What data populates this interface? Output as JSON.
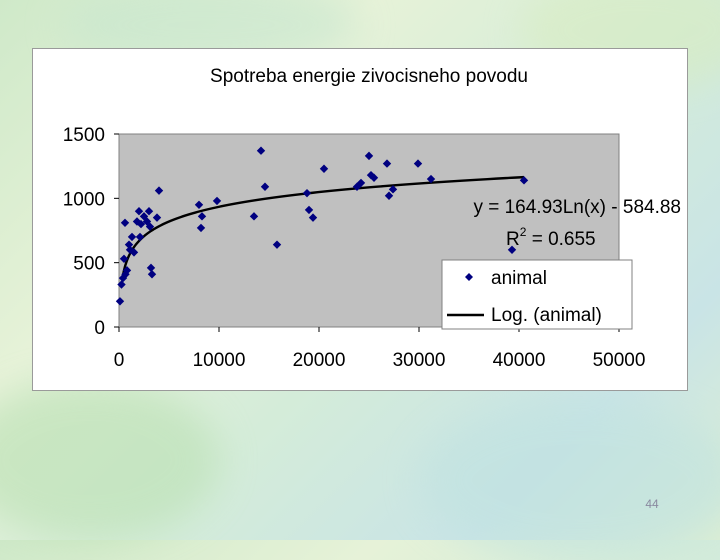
{
  "slide": {
    "number": "44"
  },
  "colors": {
    "plot_bg": "#c0c0c0",
    "marker": "#000080",
    "trendline": "#000000",
    "panel_bg": "#ffffff"
  },
  "chart_data": {
    "type": "scatter",
    "title": "Spotreba energie zivocisneho povodu",
    "xlabel": "",
    "ylabel": "",
    "xlim": [
      0,
      50000
    ],
    "ylim": [
      0,
      1500
    ],
    "x_ticks": [
      "0",
      "10000",
      "20000",
      "30000",
      "40000",
      "50000"
    ],
    "y_ticks": [
      "0",
      "500",
      "1000",
      "1500"
    ],
    "grid": false,
    "legend_position": "bottom-right",
    "series": [
      {
        "name": "animal",
        "marker": "diamond",
        "points": [
          [
            100,
            200
          ],
          [
            250,
            330
          ],
          [
            400,
            380
          ],
          [
            500,
            530
          ],
          [
            600,
            810
          ],
          [
            650,
            410
          ],
          [
            800,
            440
          ],
          [
            1000,
            640
          ],
          [
            1100,
            600
          ],
          [
            1300,
            700
          ],
          [
            1500,
            580
          ],
          [
            1800,
            820
          ],
          [
            2000,
            900
          ],
          [
            2100,
            700
          ],
          [
            2200,
            800
          ],
          [
            2500,
            860
          ],
          [
            2800,
            820
          ],
          [
            3000,
            900
          ],
          [
            3100,
            780
          ],
          [
            3200,
            460
          ],
          [
            3300,
            410
          ],
          [
            3800,
            850
          ],
          [
            4000,
            1060
          ],
          [
            8000,
            950
          ],
          [
            8200,
            770
          ],
          [
            8300,
            860
          ],
          [
            9800,
            980
          ],
          [
            13500,
            860
          ],
          [
            14200,
            1370
          ],
          [
            14600,
            1090
          ],
          [
            15800,
            640
          ],
          [
            18800,
            1040
          ],
          [
            19000,
            910
          ],
          [
            19400,
            850
          ],
          [
            20500,
            1230
          ],
          [
            23800,
            1090
          ],
          [
            24200,
            1120
          ],
          [
            25000,
            1330
          ],
          [
            25200,
            1180
          ],
          [
            25500,
            1160
          ],
          [
            26800,
            1270
          ],
          [
            27000,
            1020
          ],
          [
            27400,
            1070
          ],
          [
            29900,
            1270
          ],
          [
            31200,
            1150
          ],
          [
            39300,
            600
          ],
          [
            40500,
            1140
          ]
        ]
      },
      {
        "name": "Log. (animal)",
        "type": "trendline",
        "function": "log",
        "coefficient_a": 164.93,
        "coefficient_b": -584.88,
        "x_range": [
          350,
          40500
        ]
      }
    ],
    "annotations": {
      "equation": "y = 164.93Ln(x) - 584.88",
      "r2_prefix": "R",
      "r2_superscript": "2",
      "r2_value": " = 0.655"
    }
  }
}
